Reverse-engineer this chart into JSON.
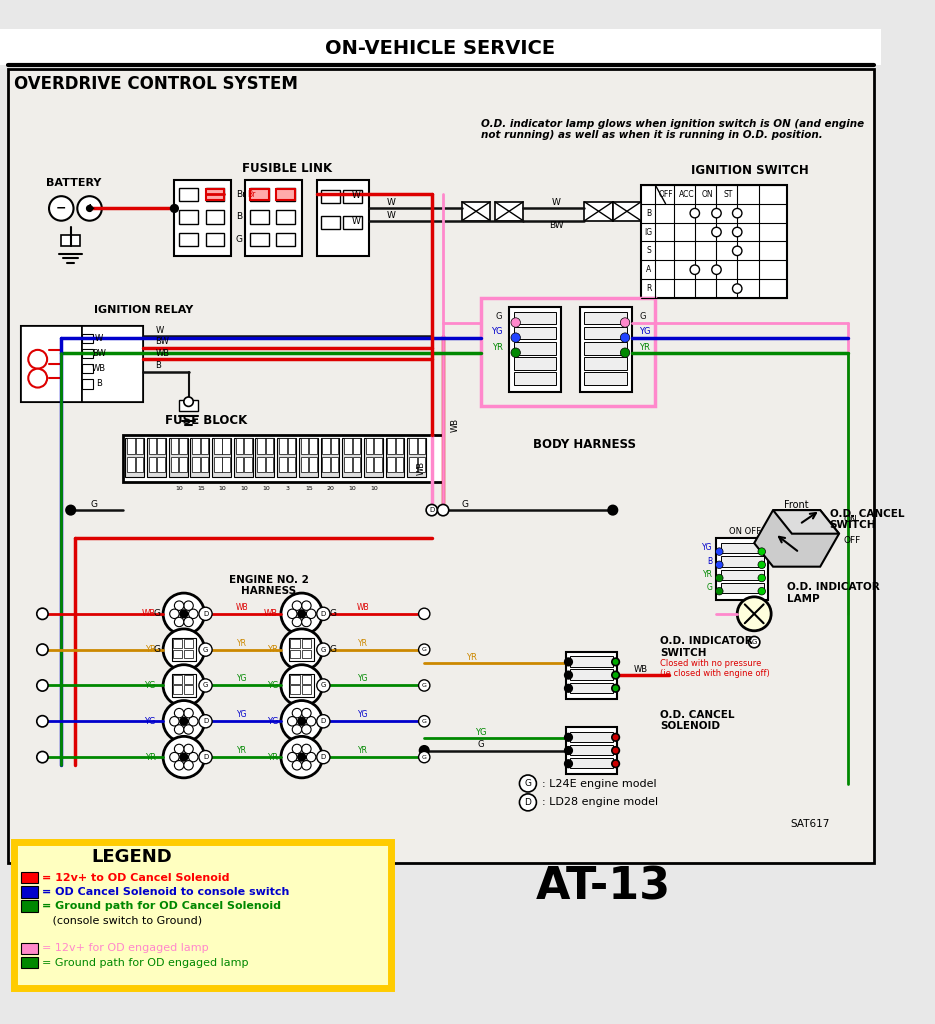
{
  "title_top": "ON-VEHICLE SERVICE",
  "title_sub": "OVERDRIVE CONTROL SYSTEM",
  "page_ref": "AT-13",
  "note_text": "O.D. indicator lamp glows when ignition switch is ON (and engine\nnot running) as well as when it is running in O.D. position.",
  "sat_ref": "SAT617",
  "bg_color": "#e8e8e8",
  "diagram_bg": "#f0eeea",
  "legend_bg": "#ffffc0",
  "legend_border": "#ffcc00",
  "wire_red": "#dd0000",
  "wire_blue": "#0000cc",
  "wire_green": "#008800",
  "wire_pink": "#ff88cc",
  "wire_black": "#111111",
  "wire_bw": "#cc0000",
  "dot_pink": "#ff88cc",
  "dot_blue": "#2244ff",
  "dot_green": "#008800"
}
